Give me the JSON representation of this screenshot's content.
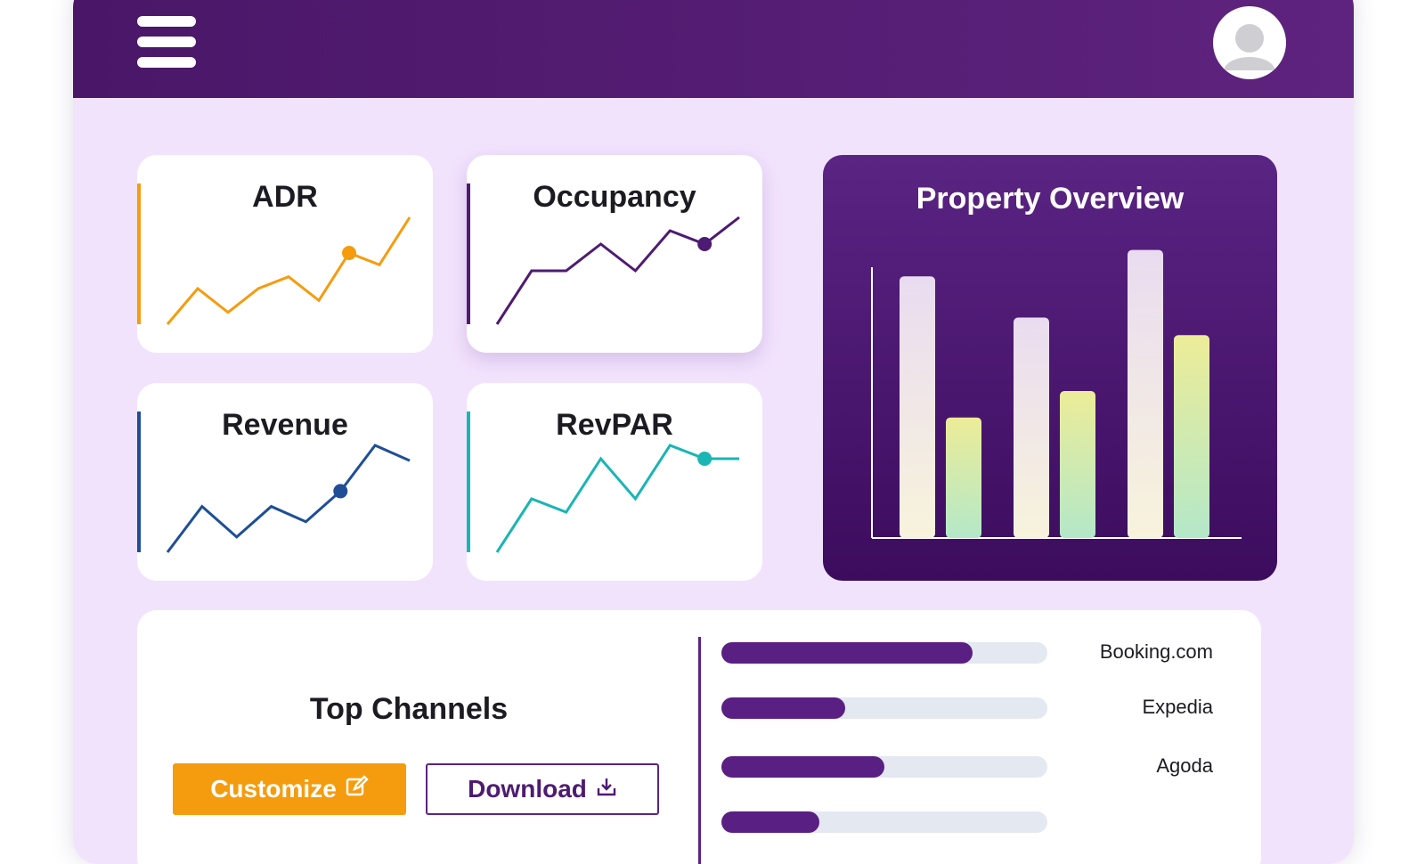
{
  "header": {
    "menu_icon": "hamburger-menu-icon",
    "avatar_icon": "user-avatar-icon"
  },
  "metrics": [
    {
      "title": "ADR",
      "color": "#f59c0e",
      "values": [
        1,
        4,
        2,
        4,
        5,
        3,
        7,
        6,
        10
      ],
      "highlight_index": 6
    },
    {
      "title": "Occupancy",
      "color": "#4e1b72",
      "values": [
        1,
        5,
        5,
        7,
        5,
        8,
        7,
        9
      ],
      "highlight_index": 6
    },
    {
      "title": "Revenue",
      "color": "#1f4e96",
      "values": [
        1,
        4,
        2,
        4,
        3,
        5,
        8,
        7
      ],
      "highlight_index": 5
    },
    {
      "title": "RevPAR",
      "color": "#1ab5b5",
      "values": [
        1,
        5,
        4,
        8,
        5,
        9,
        8,
        8
      ],
      "highlight_index": 6
    }
  ],
  "overview": {
    "title": "Property Overview",
    "chart_data": {
      "type": "bar",
      "categories": [
        "",
        "",
        ""
      ],
      "series": [
        {
          "values": [
            89,
            75,
            98
          ]
        },
        {
          "values": [
            41,
            50,
            69
          ]
        }
      ],
      "ylim": [
        0,
        100
      ],
      "grid": false,
      "colors": [
        "#efe3f3",
        "#e7ea98"
      ]
    }
  },
  "channels": {
    "title": "Top Channels",
    "customize_label": "Customize",
    "customize_icon": "edit-icon",
    "download_label": "Download",
    "download_icon": "download-icon",
    "items": [
      {
        "name": "Booking.com",
        "share": 0.77
      },
      {
        "name": "Expedia",
        "share": 0.38
      },
      {
        "name": "Agoda",
        "share": 0.5
      }
    ]
  }
}
